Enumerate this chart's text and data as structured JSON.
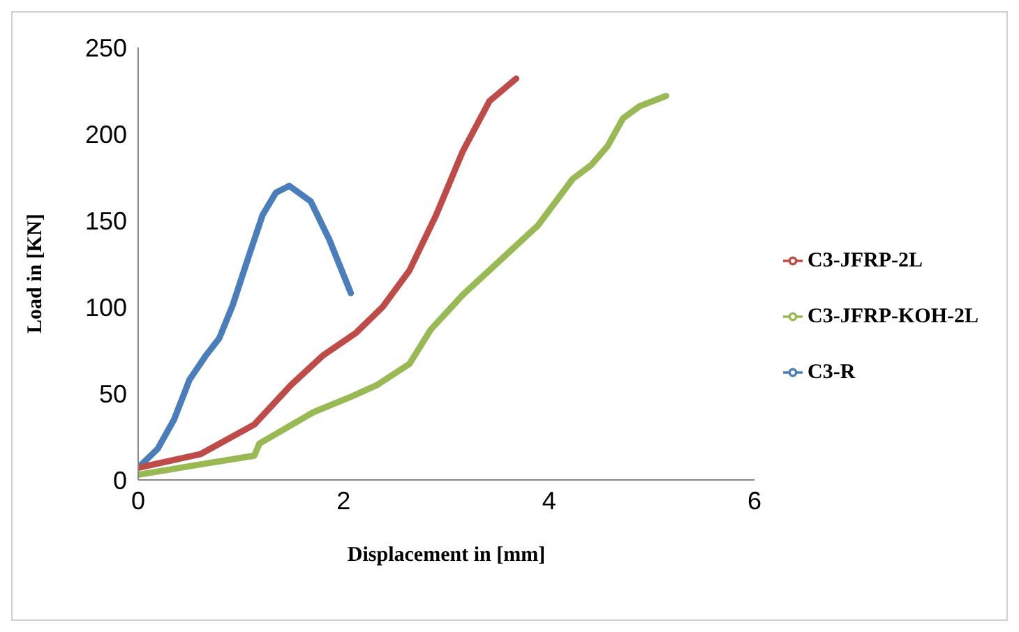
{
  "chart_data": {
    "type": "line",
    "xlabel": "Displacement in [mm]",
    "ylabel": "Load in [KN]",
    "xlim": [
      0,
      6
    ],
    "xticks": [
      0,
      2,
      4,
      6
    ],
    "ylim": [
      0,
      250
    ],
    "yticks": [
      0,
      50,
      100,
      150,
      200,
      250
    ],
    "grid": false,
    "legend": "right",
    "marker": "none",
    "line_style": "solid",
    "series": [
      {
        "name": "C3-R",
        "color": "#4a7ebb",
        "x": [
          0,
          0.19,
          0.35,
          0.5,
          0.66,
          0.79,
          0.92,
          1.08,
          1.21,
          1.34,
          1.47,
          1.68,
          1.86,
          2.07
        ],
        "values": [
          7,
          18,
          35,
          58,
          72,
          82,
          101,
          130,
          153,
          166,
          170,
          161,
          139,
          108
        ]
      },
      {
        "name": "C3-JFRP-2L",
        "color": "#be4b48",
        "x": [
          0,
          0.61,
          1.13,
          1.49,
          1.8,
          2.12,
          2.38,
          2.64,
          2.9,
          3.16,
          3.42,
          3.68
        ],
        "values": [
          7,
          15,
          32,
          55,
          72,
          85,
          100,
          121,
          153,
          190,
          219,
          232
        ]
      },
      {
        "name": "C3-JFRP-KOH-2L",
        "color": "#98b954",
        "x": [
          0,
          0.61,
          1.13,
          1.18,
          1.7,
          2.07,
          2.33,
          2.64,
          2.85,
          3.16,
          3.58,
          3.89,
          4.23,
          4.41,
          4.57,
          4.72,
          4.88,
          5.14
        ],
        "values": [
          3,
          9,
          14,
          21,
          39,
          48,
          55,
          67,
          87,
          107,
          130,
          147,
          174,
          182,
          193,
          209,
          216,
          222
        ]
      }
    ]
  }
}
